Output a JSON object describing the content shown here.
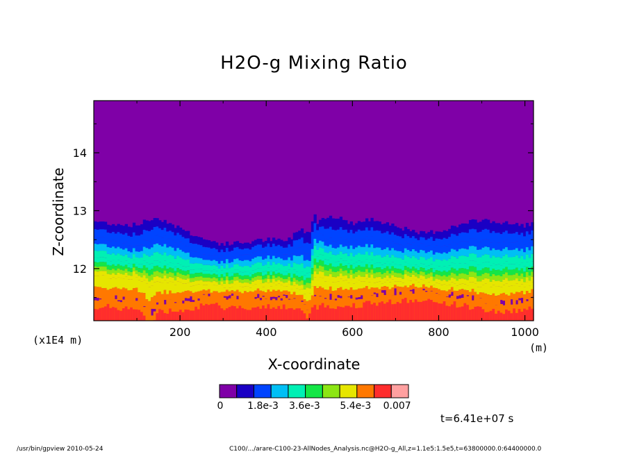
{
  "chart_data": {
    "type": "heatmap",
    "title": "H2O-g Mixing Ratio",
    "xlabel": "X-coordinate",
    "ylabel": "Z-coordinate",
    "x_unit_note": "(x1E4 m)",
    "x_unit": "(m)",
    "xlim": [
      0,
      1020
    ],
    "ylim": [
      11.1,
      14.9
    ],
    "x_ticks": [
      "200",
      "400",
      "600",
      "800",
      "1000"
    ],
    "y_ticks": [
      "12",
      "13",
      "14"
    ],
    "colorbar": {
      "colors": [
        "#7f00a7",
        "#1a00c4",
        "#0044ff",
        "#00bff5",
        "#00f0b4",
        "#14e646",
        "#8ce614",
        "#e6e600",
        "#ff7800",
        "#ff2d2d",
        "#ffa0a0"
      ],
      "labels": [
        "0",
        "1.8e-3",
        "3.6e-3",
        "5.4e-3",
        "0.007"
      ],
      "range": [
        0,
        0.007
      ]
    },
    "profiles": {
      "x": [
        0,
        50,
        100,
        130,
        150,
        200,
        250,
        300,
        350,
        400,
        450,
        480,
        500,
        510,
        520,
        540,
        560,
        600,
        650,
        700,
        750,
        800,
        850,
        900,
        950,
        1000,
        1020
      ],
      "z_top": [
        12.82,
        12.77,
        12.75,
        12.85,
        12.88,
        12.7,
        12.52,
        12.42,
        12.45,
        12.5,
        12.48,
        12.7,
        12.6,
        12.95,
        12.8,
        12.92,
        12.9,
        12.78,
        12.85,
        12.75,
        12.6,
        12.65,
        12.75,
        12.85,
        12.78,
        12.75,
        12.78
      ],
      "z_dry": [
        12.55,
        12.5,
        12.4,
        12.5,
        12.6,
        12.45,
        12.25,
        12.2,
        12.25,
        12.3,
        12.25,
        12.4,
        12.2,
        12.6,
        12.6,
        12.55,
        12.5,
        12.5,
        12.52,
        12.45,
        12.4,
        12.4,
        12.45,
        12.5,
        12.45,
        12.45,
        12.5
      ],
      "z_mid": [
        12.2,
        12.15,
        12.1,
        12.1,
        12.15,
        12.05,
        11.98,
        11.95,
        11.95,
        11.98,
        11.95,
        11.95,
        11.9,
        12.25,
        12.25,
        12.2,
        12.15,
        12.12,
        12.12,
        12.1,
        12.05,
        12.05,
        12.08,
        12.1,
        12.08,
        12.08,
        12.1
      ],
      "z_moist": [
        11.88,
        11.85,
        11.85,
        11.7,
        11.8,
        11.75,
        11.72,
        11.7,
        11.7,
        11.72,
        11.7,
        11.65,
        11.55,
        11.8,
        11.85,
        11.82,
        11.8,
        11.78,
        11.78,
        11.8,
        11.78,
        11.75,
        11.72,
        11.72,
        11.7,
        11.72,
        11.75
      ],
      "z_wet": [
        11.5,
        11.48,
        11.45,
        11.2,
        11.4,
        11.45,
        11.5,
        11.52,
        11.52,
        11.5,
        11.5,
        11.45,
        11.3,
        11.5,
        11.55,
        11.52,
        11.5,
        11.52,
        11.55,
        11.6,
        11.6,
        11.58,
        11.52,
        11.45,
        11.4,
        11.45,
        11.5
      ]
    }
  },
  "time_label": "t=6.41e+07 s",
  "footer": {
    "left": "/usr/bin/gpview  2010-05-24",
    "right": "C100/.../arare-C100-23-AllNodes_Analysis.nc@H2O-g_All,z=1.1e5:1.5e5,t=63800000.0:64400000.0"
  }
}
